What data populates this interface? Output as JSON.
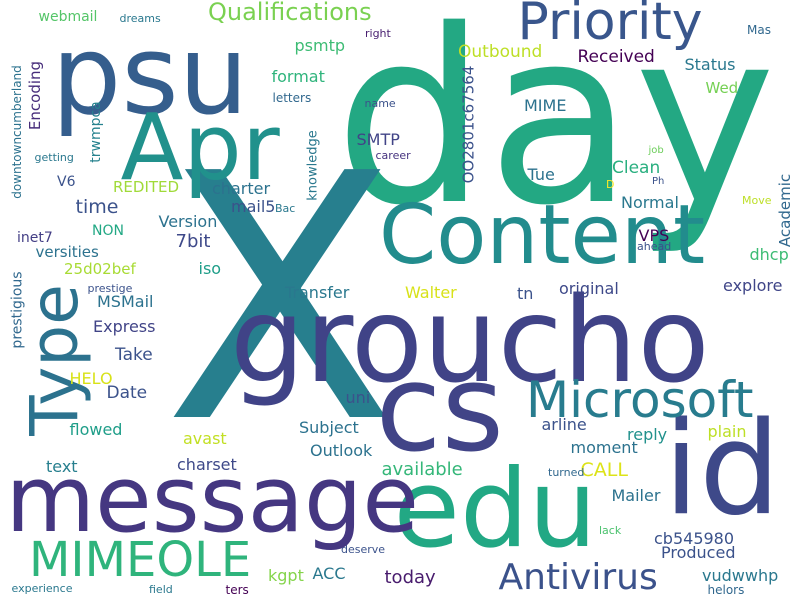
{
  "words": [
    {
      "text": "day",
      "color": "#23a883",
      "vertical": false
    },
    {
      "text": "X",
      "color": "#277f8e",
      "vertical": false
    },
    {
      "text": "psu",
      "color": "#355e8d",
      "vertical": false
    },
    {
      "text": "groucho",
      "color": "#404387",
      "vertical": false
    },
    {
      "text": "id",
      "color": "#3e4989",
      "vertical": false
    },
    {
      "text": "cs",
      "color": "#414487",
      "vertical": false
    },
    {
      "text": "edu",
      "color": "#22a884",
      "vertical": false
    },
    {
      "text": "message",
      "color": "#453781",
      "vertical": false
    },
    {
      "text": "Apr",
      "color": "#21918c",
      "vertical": false
    },
    {
      "text": "Content",
      "color": "#228c8d",
      "vertical": false
    },
    {
      "text": "Type",
      "color": "#2c728e",
      "vertical": true
    },
    {
      "text": "Priority",
      "color": "#39568c",
      "vertical": false
    },
    {
      "text": "Microsoft",
      "color": "#287c8e",
      "vertical": false
    },
    {
      "text": "MIMEOLE",
      "color": "#2fb47c",
      "vertical": false
    },
    {
      "text": "Antivirus",
      "color": "#3b528b",
      "vertical": false
    },
    {
      "text": "Qualifications",
      "color": "#7ad151",
      "vertical": false
    },
    {
      "text": "webmail",
      "color": "#54c568",
      "vertical": false
    },
    {
      "text": "dreams",
      "color": "#2a788e",
      "vertical": false
    },
    {
      "text": "right",
      "color": "#481f70",
      "vertical": false
    },
    {
      "text": "Mas",
      "color": "#31688e",
      "vertical": false
    },
    {
      "text": "psmtp",
      "color": "#3dbc74",
      "vertical": false
    },
    {
      "text": "Outbound",
      "color": "#bddf26",
      "vertical": false
    },
    {
      "text": "Received",
      "color": "#440154",
      "vertical": false
    },
    {
      "text": "Status",
      "color": "#2a788e",
      "vertical": false
    },
    {
      "text": "Wed",
      "color": "#75d054",
      "vertical": false
    },
    {
      "text": "format",
      "color": "#2fb47c",
      "vertical": false
    },
    {
      "text": "letters",
      "color": "#31688e",
      "vertical": false
    },
    {
      "text": "name",
      "color": "#3b528b",
      "vertical": false
    },
    {
      "text": "MIME",
      "color": "#2c728e",
      "vertical": false
    },
    {
      "text": "downtowncumberland",
      "color": "#2c728e",
      "vertical": true
    },
    {
      "text": "Encoding",
      "color": "#472d7b",
      "vertical": true
    },
    {
      "text": "trwmpca",
      "color": "#26828e",
      "vertical": true
    },
    {
      "text": "OO2801c67564",
      "color": "#3b528b",
      "vertical": true
    },
    {
      "text": "knowledge",
      "color": "#2a788e",
      "vertical": true
    },
    {
      "text": "Academic",
      "color": "#31688e",
      "vertical": true
    },
    {
      "text": "getting",
      "color": "#2a788e",
      "vertical": false
    },
    {
      "text": "V6",
      "color": "#3b528b",
      "vertical": false
    },
    {
      "text": "REDITED",
      "color": "#a0da39",
      "vertical": false
    },
    {
      "text": "SMTP",
      "color": "#414487",
      "vertical": false
    },
    {
      "text": "career",
      "color": "#46337f",
      "vertical": false
    },
    {
      "text": "Clean",
      "color": "#29af7f",
      "vertical": false
    },
    {
      "text": "Tue",
      "color": "#2c728e",
      "vertical": false
    },
    {
      "text": "job",
      "color": "#6ccd5a",
      "vertical": false
    },
    {
      "text": "Ph",
      "color": "#3b528b",
      "vertical": false
    },
    {
      "text": "D",
      "color": "#fde725",
      "vertical": false
    },
    {
      "text": "Move",
      "color": "#bddf26",
      "vertical": false
    },
    {
      "text": "time",
      "color": "#3b528b",
      "vertical": false
    },
    {
      "text": "charter",
      "color": "#2c728e",
      "vertical": false
    },
    {
      "text": "mail5",
      "color": "#3b528b",
      "vertical": false
    },
    {
      "text": "Bac",
      "color": "#2a788e",
      "vertical": false
    },
    {
      "text": "Normal",
      "color": "#2a788e",
      "vertical": false
    },
    {
      "text": "Version",
      "color": "#2c728e",
      "vertical": false
    },
    {
      "text": "NON",
      "color": "#22a884",
      "vertical": false
    },
    {
      "text": "inet7",
      "color": "#433e85",
      "vertical": false
    },
    {
      "text": "7bit",
      "color": "#3e4989",
      "vertical": false
    },
    {
      "text": "VPS",
      "color": "#440154",
      "vertical": false
    },
    {
      "text": "ahead",
      "color": "#3b528b",
      "vertical": false
    },
    {
      "text": "versities",
      "color": "#2c728e",
      "vertical": false
    },
    {
      "text": "25d02bef",
      "color": "#a8db34",
      "vertical": false
    },
    {
      "text": "iso",
      "color": "#1f9e89",
      "vertical": false
    },
    {
      "text": "dhcp",
      "color": "#3dbc74",
      "vertical": false
    },
    {
      "text": "prestige",
      "color": "#3b528b",
      "vertical": false
    },
    {
      "text": "prestigious",
      "color": "#31688e",
      "vertical": true
    },
    {
      "text": "Transfer",
      "color": "#2a788e",
      "vertical": false
    },
    {
      "text": "Walter",
      "color": "#d8e219",
      "vertical": false
    },
    {
      "text": "tn",
      "color": "#3b528b",
      "vertical": false
    },
    {
      "text": "original",
      "color": "#3e4989",
      "vertical": false
    },
    {
      "text": "explore",
      "color": "#404688",
      "vertical": false
    },
    {
      "text": "MSMail",
      "color": "#2c728e",
      "vertical": false
    },
    {
      "text": "Express",
      "color": "#414487",
      "vertical": false
    },
    {
      "text": "Take",
      "color": "#3b528b",
      "vertical": false
    },
    {
      "text": "HELO",
      "color": "#d8e219",
      "vertical": false
    },
    {
      "text": "Date",
      "color": "#3b528b",
      "vertical": false
    },
    {
      "text": "uni",
      "color": "#3b528b",
      "vertical": false
    },
    {
      "text": "Subject",
      "color": "#2c728e",
      "vertical": false
    },
    {
      "text": "arline",
      "color": "#3b528b",
      "vertical": false
    },
    {
      "text": "flowed",
      "color": "#1f9e89",
      "vertical": false
    },
    {
      "text": "avast",
      "color": "#c2df23",
      "vertical": false
    },
    {
      "text": "Outlook",
      "color": "#2c728e",
      "vertical": false
    },
    {
      "text": "moment",
      "color": "#2c728e",
      "vertical": false
    },
    {
      "text": "reply",
      "color": "#21918c",
      "vertical": false
    },
    {
      "text": "plain",
      "color": "#bddf26",
      "vertical": false
    },
    {
      "text": "text",
      "color": "#277f8e",
      "vertical": false
    },
    {
      "text": "charset",
      "color": "#3e4989",
      "vertical": false
    },
    {
      "text": "available",
      "color": "#35b779",
      "vertical": false
    },
    {
      "text": "CALL",
      "color": "#dde318",
      "vertical": false
    },
    {
      "text": "turned",
      "color": "#31688e",
      "vertical": false
    },
    {
      "text": "Mailer",
      "color": "#2c728e",
      "vertical": false
    },
    {
      "text": "cb545980",
      "color": "#3b528b",
      "vertical": false
    },
    {
      "text": "lack",
      "color": "#4ac16d",
      "vertical": false
    },
    {
      "text": "Produced",
      "color": "#3b528b",
      "vertical": false
    },
    {
      "text": "kgpt",
      "color": "#84d44b",
      "vertical": false
    },
    {
      "text": "ACC",
      "color": "#2a788e",
      "vertical": false
    },
    {
      "text": "deserve",
      "color": "#3b528b",
      "vertical": false
    },
    {
      "text": "today",
      "color": "#481b6d",
      "vertical": false
    },
    {
      "text": "vudwwhp",
      "color": "#2a788e",
      "vertical": false
    },
    {
      "text": "experience",
      "color": "#2a788e",
      "vertical": false
    },
    {
      "text": "field",
      "color": "#2a788e",
      "vertical": false
    },
    {
      "text": "ters",
      "color": "#440154",
      "vertical": false
    },
    {
      "text": "helors",
      "color": "#31688e",
      "vertical": false
    }
  ]
}
